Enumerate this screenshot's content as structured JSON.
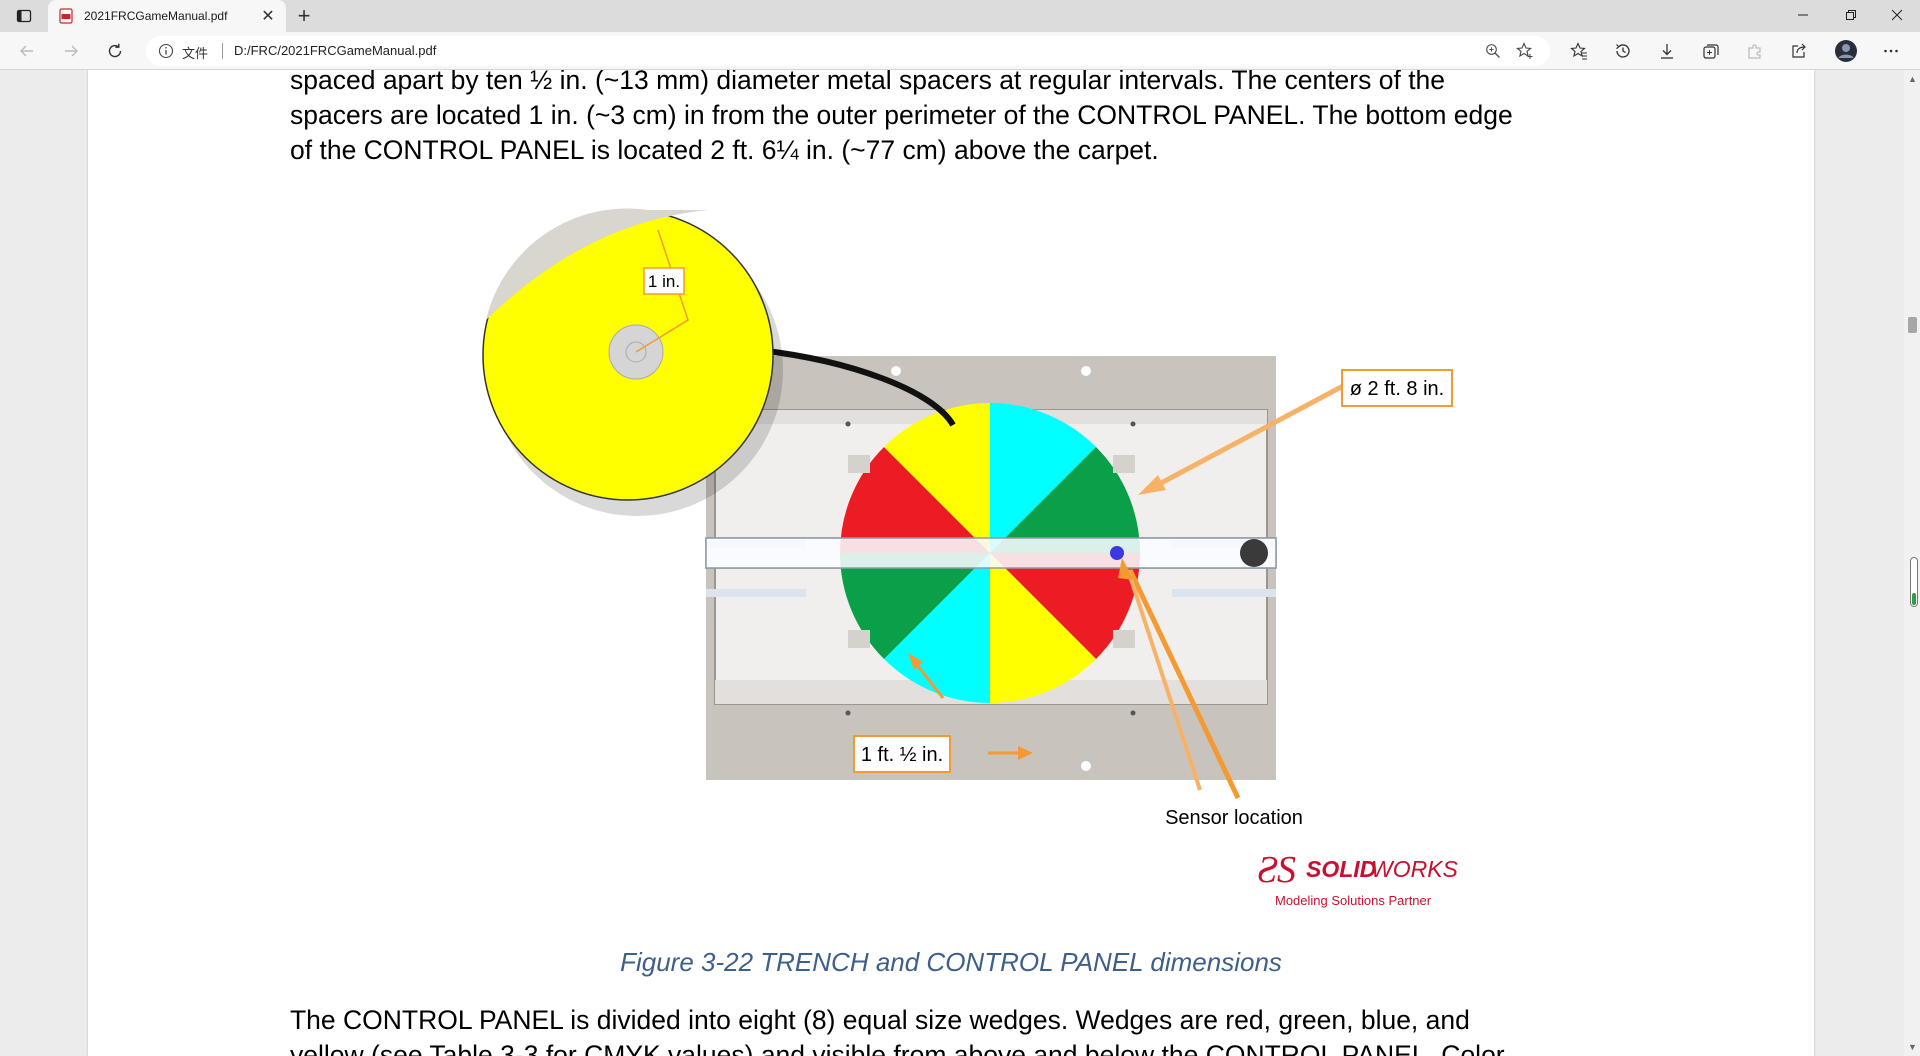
{
  "tab": {
    "title": "2021FRCGameManual.pdf",
    "close": "✕"
  },
  "new_tab": "+",
  "window": {
    "minimize": "—",
    "maximize": "❐",
    "close": "✕"
  },
  "address": {
    "file_label": "文件",
    "url": "D:/FRC/2021FRCGameManual.pdf"
  },
  "document": {
    "paragraph1": [
      "spaced apart by ten ½ in. (~13 mm) diameter metal spacers at regular intervals. The centers of the",
      "spacers are located 1 in. (~3 cm) in from the outer perimeter of the CONTROL PANEL. The bottom edge",
      "of the CONTROL PANEL is located 2 ft. 6¼ in. (~77 cm) above the carpet."
    ],
    "figure": {
      "label_inset": "1 in.",
      "label_diameter": "ø 2 ft. 8 in.",
      "label_height": "1 ft. ½ in.",
      "label_sensor": "Sensor location",
      "logo_brand_a": "SOLID",
      "logo_brand_b": "WORKS",
      "logo_sub": "Modeling Solutions Partner"
    },
    "caption": "Figure 3-22 TRENCH and CONTROL PANEL dimensions",
    "paragraph2": [
      "The CONTROL PANEL is divided into eight (8) equal size wedges. Wedges are red, green, blue, and",
      "yellow (see Table 3-3 for CMYK values) and visible from above and below the CONTROL PANEL. Color"
    ]
  },
  "colors": {
    "red": "#ec1c24",
    "green": "#0aa04a",
    "cyan": "#00ffff",
    "yellow": "#ffff00",
    "orange": "#f39a33",
    "caption": "#3e5f8a"
  }
}
